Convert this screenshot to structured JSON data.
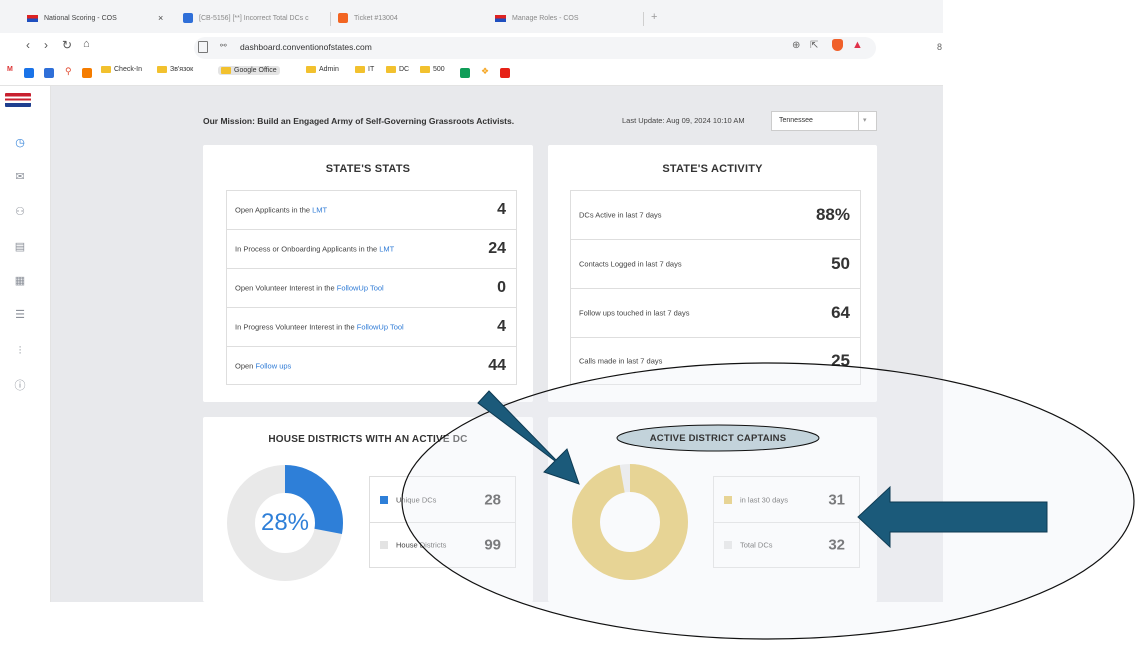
{
  "tabs": [
    {
      "title": "National Scoring - COS"
    },
    {
      "title": "[CB-5156] [**] Incorrect Total DCs c"
    },
    {
      "title": "Ticket #13004"
    },
    {
      "title": "Manage Roles - COS"
    }
  ],
  "address": {
    "url": "dashboard.conventionofstates.com"
  },
  "bookmarks": [
    "Check-In",
    "Зв'язок",
    "Google Office",
    "Admin",
    "IT",
    "DC",
    "500"
  ],
  "header": {
    "mission": "Our Mission: Build an Engaged Army of Self-Governing Grassroots Activists.",
    "last_update": "Last Update: Aug 09, 2024 10:10 AM",
    "state_select": "Tennessee"
  },
  "states_stats": {
    "title": "STATE'S STATS",
    "rows": [
      {
        "prefix": "Open Applicants in the ",
        "link": "LMT",
        "value": "4"
      },
      {
        "prefix": "In Process or Onboarding Applicants in the ",
        "link": "LMT",
        "value": "24"
      },
      {
        "prefix": "Open Volunteer Interest in the ",
        "link": "FollowUp Tool",
        "value": "0"
      },
      {
        "prefix": "In Progress Volunteer Interest in the ",
        "link": "FollowUp Tool",
        "value": "4"
      },
      {
        "prefix": "Open ",
        "link": "Follow ups",
        "value": "44"
      }
    ]
  },
  "states_activity": {
    "title": "STATE'S ACTIVITY",
    "rows": [
      {
        "label": "DCs Active in last 7 days",
        "value": "88%"
      },
      {
        "label": "Contacts Logged in last 7 days",
        "value": "50"
      },
      {
        "label": "Follow ups touched in last 7 days",
        "value": "64"
      },
      {
        "label": "Calls made in last 7 days",
        "value": "25"
      }
    ]
  },
  "house_districts": {
    "title": "HOUSE DISTRICTS WITH AN ACTIVE DC",
    "percent_label": "28%",
    "fraction": 0.28,
    "legend": [
      {
        "label": "Unique DCs",
        "value": "28"
      },
      {
        "label": "House Districts",
        "value": "99"
      }
    ]
  },
  "active_dcs": {
    "title": "ACTIVE DISTRICT CAPTAINS",
    "percent_label": "97%",
    "fraction": 0.97,
    "legend": [
      {
        "label": "in last 30 days",
        "value": "31"
      },
      {
        "label": "Total DCs",
        "value": "32"
      }
    ]
  },
  "colors": {
    "blue": "#2e7fd8",
    "gold": "#e3c25a",
    "grey": "#e9e9e9",
    "annotation": "#1b5a7a",
    "ellipse_fill": "#eef3f6"
  }
}
